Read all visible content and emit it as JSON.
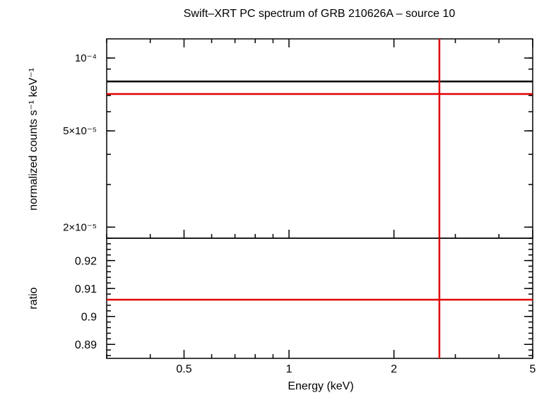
{
  "chart_data": {
    "title": "Swift–XRT PC spectrum of GRB 210626A – source 10",
    "type": "line",
    "x_axis": {
      "label": "Energy (keV)",
      "scale": "log",
      "range": [
        0.3,
        5
      ],
      "tick_values": [
        0.5,
        1,
        2,
        5
      ],
      "tick_labels": [
        "0.5",
        "1",
        "2",
        "5"
      ]
    },
    "top_panel": {
      "ylabel": "normalized counts s⁻¹ keV⁻¹",
      "yscale": "log",
      "ylim": [
        1.8e-05,
        0.00012
      ],
      "tick_values": [
        0.0001,
        5e-05,
        2e-05
      ],
      "tick_labels": [
        "10⁻⁴",
        "5×10⁻⁵",
        "2×10⁻⁵"
      ],
      "series": [
        {
          "color": "#000000",
          "y": 8e-05
        },
        {
          "color": "#e00000",
          "y": 7.1e-05
        }
      ],
      "vertical_marker": {
        "color": "#e00000",
        "x": 2.7
      }
    },
    "bottom_panel": {
      "ylabel": "ratio",
      "ylim": [
        0.885,
        0.928
      ],
      "tick_values": [
        0.92,
        0.91,
        0.9,
        0.89
      ],
      "tick_labels": [
        "0.92",
        "0.91",
        "0.9",
        "0.89"
      ],
      "series": [
        {
          "color": "#e00000",
          "y": 0.906
        }
      ],
      "vertical_marker": {
        "color": "#e00000",
        "x": 2.7
      }
    }
  }
}
